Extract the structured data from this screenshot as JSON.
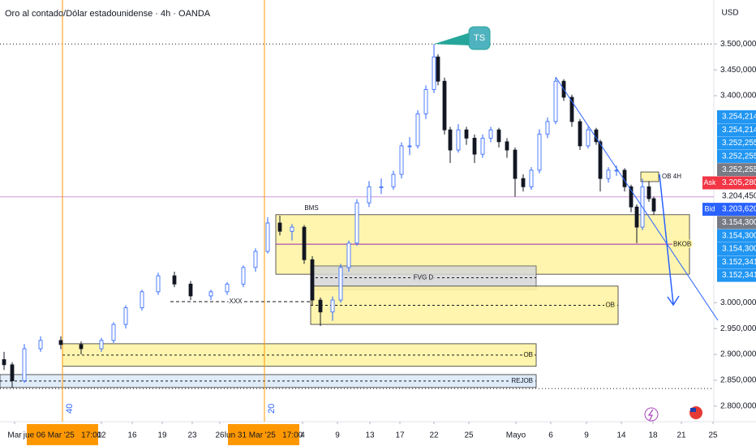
{
  "chart_data": {
    "type": "candlestick",
    "title": "Oro al contado/Dólar estadounidense · 4h · OANDA",
    "currency": "USD",
    "up_color": "#2962ff",
    "down_color": "#131722",
    "xlim": [
      0,
      880
    ],
    "ylim": [
      2770000,
      3585000
    ],
    "yticks": [
      {
        "value": 3500000,
        "label": "3.500,000"
      },
      {
        "value": 3450000,
        "label": "3.450,000"
      },
      {
        "value": 3400000,
        "label": "3.400,000"
      },
      {
        "value": 3000000,
        "label": "3.000,000"
      },
      {
        "value": 2950000,
        "label": "2.950,000"
      },
      {
        "value": 2900000,
        "label": "2.900,000"
      },
      {
        "value": 2850000,
        "label": "2.850,000"
      },
      {
        "value": 2800000,
        "label": "2.800,000"
      }
    ],
    "xticks": [
      {
        "value": 18,
        "label": "Mar"
      },
      {
        "value": 125,
        "label": "12"
      },
      {
        "value": 163,
        "label": "16"
      },
      {
        "value": 200,
        "label": "19"
      },
      {
        "value": 237,
        "label": "23"
      },
      {
        "value": 271,
        "label": "26"
      },
      {
        "value": 373,
        "label": "4"
      },
      {
        "value": 416,
        "label": "9"
      },
      {
        "value": 456,
        "label": "13"
      },
      {
        "value": 493,
        "label": "17"
      },
      {
        "value": 535,
        "label": "22"
      },
      {
        "value": 578,
        "label": "25"
      },
      {
        "value": 636,
        "label": "Mayo"
      },
      {
        "value": 679,
        "label": "6"
      },
      {
        "value": 723,
        "label": "9"
      },
      {
        "value": 766,
        "label": "14"
      },
      {
        "value": 805,
        "label": "18"
      },
      {
        "value": 840,
        "label": "21"
      },
      {
        "value": 879,
        "label": "25"
      }
    ],
    "candles": [
      [
        5,
        2890000,
        2905000,
        2870000,
        2880000
      ],
      [
        15,
        2880000,
        2885000,
        2835000,
        2849000
      ],
      [
        30,
        2849000,
        2920000,
        2845000,
        2911000
      ],
      [
        50,
        2911000,
        2935000,
        2905000,
        2927000
      ],
      [
        75,
        2927000,
        2935000,
        2910000,
        2919000
      ],
      [
        100,
        2919000,
        2925000,
        2900000,
        2911000
      ],
      [
        125,
        2911000,
        2932000,
        2905000,
        2927000
      ],
      [
        140,
        2927000,
        2962000,
        2922000,
        2958000
      ],
      [
        155,
        2958000,
        2995000,
        2950000,
        2990000
      ],
      [
        175,
        2990000,
        3025000,
        2985000,
        3021000
      ],
      [
        195,
        3021000,
        3058000,
        3015000,
        3052000
      ],
      [
        215,
        3052000,
        3060000,
        3030000,
        3036000
      ],
      [
        235,
        3036000,
        3042000,
        3005000,
        3013000
      ],
      [
        260,
        3013000,
        3025000,
        3005000,
        3021000
      ],
      [
        280,
        3021000,
        3040000,
        3015000,
        3036000
      ],
      [
        300,
        3036000,
        3072000,
        3030000,
        3068000
      ],
      [
        315,
        3068000,
        3105000,
        3060000,
        3099000
      ],
      [
        330,
        3099000,
        3165000,
        3095000,
        3154000
      ],
      [
        345,
        3154000,
        3168000,
        3130000,
        3138000
      ],
      [
        360,
        3138000,
        3152000,
        3120000,
        3146000
      ],
      [
        375,
        3146000,
        3150000,
        3075000,
        3083000
      ],
      [
        385,
        3083000,
        3090000,
        2995000,
        3005000
      ],
      [
        395,
        3005000,
        3010000,
        2955000,
        2982000
      ],
      [
        410,
        2982000,
        3012000,
        2965000,
        3005000
      ],
      [
        420,
        3005000,
        3075000,
        3000000,
        3068000
      ],
      [
        430,
        3068000,
        3120000,
        3060000,
        3115000
      ],
      [
        440,
        3115000,
        3200000,
        3110000,
        3193000
      ],
      [
        455,
        3193000,
        3235000,
        3185000,
        3224000
      ],
      [
        470,
        3224000,
        3240000,
        3210000,
        3224000
      ],
      [
        485,
        3224000,
        3255000,
        3218000,
        3248000
      ],
      [
        495,
        3248000,
        3310000,
        3240000,
        3303000
      ],
      [
        505,
        3303000,
        3320000,
        3285000,
        3303000
      ],
      [
        515,
        3303000,
        3372000,
        3298000,
        3365000
      ],
      [
        525,
        3365000,
        3420000,
        3355000,
        3412000
      ],
      [
        535,
        3412000,
        3500000,
        3405000,
        3475000
      ],
      [
        540,
        3475000,
        3480000,
        3420000,
        3428000
      ],
      [
        548,
        3428000,
        3435000,
        3325000,
        3334000
      ],
      [
        555,
        3334000,
        3340000,
        3270000,
        3295000
      ],
      [
        565,
        3295000,
        3345000,
        3290000,
        3334000
      ],
      [
        575,
        3334000,
        3340000,
        3305000,
        3318000
      ],
      [
        585,
        3318000,
        3325000,
        3270000,
        3287000
      ],
      [
        595,
        3287000,
        3325000,
        3280000,
        3318000
      ],
      [
        605,
        3318000,
        3340000,
        3310000,
        3334000
      ],
      [
        615,
        3334000,
        3338000,
        3300000,
        3311000
      ],
      [
        625,
        3311000,
        3318000,
        3280000,
        3295000
      ],
      [
        635,
        3295000,
        3300000,
        3205000,
        3240000
      ],
      [
        645,
        3240000,
        3248000,
        3215000,
        3224000
      ],
      [
        655,
        3224000,
        3262000,
        3218000,
        3256000
      ],
      [
        665,
        3256000,
        3335000,
        3250000,
        3326000
      ],
      [
        675,
        3326000,
        3358000,
        3318000,
        3350000
      ],
      [
        685,
        3350000,
        3435000,
        3345000,
        3428000
      ],
      [
        695,
        3428000,
        3432000,
        3390000,
        3397000
      ],
      [
        705,
        3397000,
        3402000,
        3340000,
        3350000
      ],
      [
        715,
        3350000,
        3355000,
        3295000,
        3303000
      ],
      [
        725,
        3303000,
        3340000,
        3298000,
        3334000
      ],
      [
        735,
        3334000,
        3338000,
        3305000,
        3311000
      ],
      [
        740,
        3311000,
        3315000,
        3215000,
        3240000
      ],
      [
        750,
        3240000,
        3262000,
        3232000,
        3256000
      ],
      [
        760,
        3256000,
        3265000,
        3245000,
        3256000
      ],
      [
        770,
        3256000,
        3260000,
        3215000,
        3224000
      ],
      [
        778,
        3224000,
        3228000,
        3175000,
        3185000
      ],
      [
        785,
        3185000,
        3190000,
        3115000,
        3146000
      ],
      [
        792,
        3146000,
        3240000,
        3140000,
        3224000
      ],
      [
        800,
        3224000,
        3235000,
        3195000,
        3201000
      ],
      [
        806,
        3201000,
        3205000,
        3170000,
        3177000
      ]
    ],
    "zones": [
      {
        "label": "BMS",
        "x": [
          340,
          850
        ],
        "y": [
          3170000,
          3055000
        ],
        "fill": "#fff3a0",
        "stroke": "#333333",
        "label_pos": "above"
      },
      {
        "label": "FVG D",
        "x": [
          383,
          661
        ],
        "y": [
          3071000,
          3025500
        ],
        "fill": "#d6d6d6",
        "stroke": "#555555",
        "label_pos": "center"
      },
      {
        "label": "OB",
        "x": [
          383,
          762
        ],
        "y": [
          3032000,
          2958000
        ],
        "fill": "#fff3a0",
        "stroke": "#333333",
        "label_pos": "right"
      },
      {
        "label": "OB",
        "x": [
          77,
          661
        ],
        "y": [
          2920600,
          2877000
        ],
        "fill": "#fff3a0",
        "stroke": "#333333",
        "label_pos": "right"
      },
      {
        "label": "REJOB",
        "x": [
          0,
          661
        ],
        "y": [
          2861000,
          2836000
        ],
        "fill": "#dbe9f7",
        "stroke": "#333333",
        "label_pos": "right"
      },
      {
        "label": "OB 4H",
        "x": [
          790,
          812
        ],
        "y": [
          3252600,
          3234000
        ],
        "fill": "#fff3a0",
        "stroke": "#333333",
        "label_pos": "outside"
      }
    ],
    "lines": [
      {
        "label": "BKOB",
        "x": [
          340,
          850
        ],
        "y": 3113000,
        "color": "#9c27b0"
      },
      {
        "label": "XXX",
        "x": [
          210,
          385
        ],
        "y": 3002000,
        "color": "#131722"
      }
    ],
    "high_line": 3500000,
    "low_line": 2834000,
    "last_price": 3204450,
    "callout": "TS",
    "vertical_markers": [
      {
        "x": 77,
        "label": "40"
      },
      {
        "x": 326,
        "label": "20"
      }
    ],
    "crosshair_labels": [
      {
        "x": 77,
        "label": "jue 06 Mar '25   17:00"
      },
      {
        "x": 325,
        "label": "lun 31 Mar '25   17:00"
      }
    ],
    "price_tags": [
      {
        "prefix": null,
        "text": "3.254,214",
        "color": "#2196f3"
      },
      {
        "prefix": null,
        "text": "3.254,214",
        "color": "#2196f3"
      },
      {
        "prefix": null,
        "text": "3.252,255",
        "color": "#2196f3"
      },
      {
        "prefix": null,
        "text": "3.252,255",
        "color": "#2196f3"
      },
      {
        "prefix": null,
        "text": "3.252,255",
        "color": "#787b86"
      },
      {
        "prefix": "Ask",
        "text": "3.205,280",
        "color": "#f23645"
      },
      {
        "prefix": null,
        "text": "3.204,450",
        "color": null
      },
      {
        "prefix": "Bid",
        "text": "3.203,620",
        "color": "#2962ff"
      },
      {
        "prefix": null,
        "text": "3.154,300",
        "color": "#787b86"
      },
      {
        "prefix": null,
        "text": "3.154,300",
        "color": "#2196f3"
      },
      {
        "prefix": null,
        "text": "3.154,300",
        "color": "#2196f3"
      },
      {
        "prefix": null,
        "text": "3.152,341",
        "color": "#2196f3"
      },
      {
        "prefix": null,
        "text": "3.152,341",
        "color": "#2196f3"
      }
    ]
  }
}
